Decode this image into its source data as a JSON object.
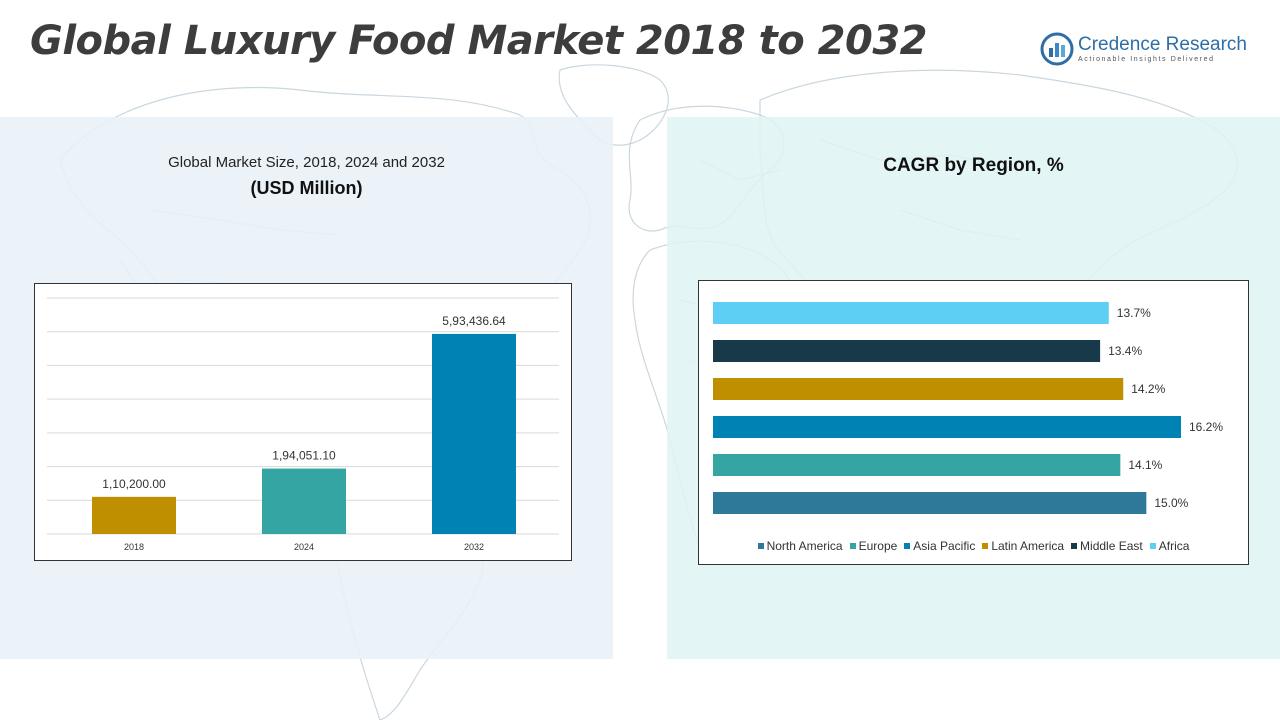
{
  "title": "Global Luxury Food Market 2018 to 2032",
  "logo": {
    "name": "Credence Research",
    "tagline": "Actionable Insights Delivered"
  },
  "colors": {
    "page_title": "#3d3d3d",
    "brand": "#2e6ea6",
    "left_panel": "#e8f1f8",
    "right_panel": "#dff4f3"
  },
  "chart_data": [
    {
      "type": "bar",
      "title": "Global Market Size, 2018, 2024 and 2032",
      "unit": "(USD Million)",
      "categories": [
        "2018",
        "2024",
        "2032"
      ],
      "values": [
        110200.0,
        194051.1,
        593436.64
      ],
      "value_labels": [
        "1,10,200.00",
        "1,94,051.10",
        "5,93,436.64"
      ],
      "colors": [
        "#bf8f00",
        "#35a5a3",
        "#0082b4"
      ],
      "ylim": [
        0,
        700000
      ],
      "grid": true,
      "xlabel": "",
      "ylabel": ""
    },
    {
      "type": "bar",
      "orientation": "horizontal",
      "title": "CAGR by Region, %",
      "categories": [
        "North America",
        "Europe",
        "Asia Pacific",
        "Latin America",
        "Middle East",
        "Africa"
      ],
      "values": [
        15.0,
        14.1,
        16.2,
        14.2,
        13.4,
        13.7
      ],
      "value_labels": [
        "15.0%",
        "14.1%",
        "16.2%",
        "14.2%",
        "13.4%",
        "13.7%"
      ],
      "colors": [
        "#2e7899",
        "#35a5a3",
        "#0082b4",
        "#bf8f00",
        "#17394a",
        "#5dcff5"
      ],
      "xlim": [
        0,
        17
      ],
      "legend": "bottom",
      "grid": false
    }
  ]
}
